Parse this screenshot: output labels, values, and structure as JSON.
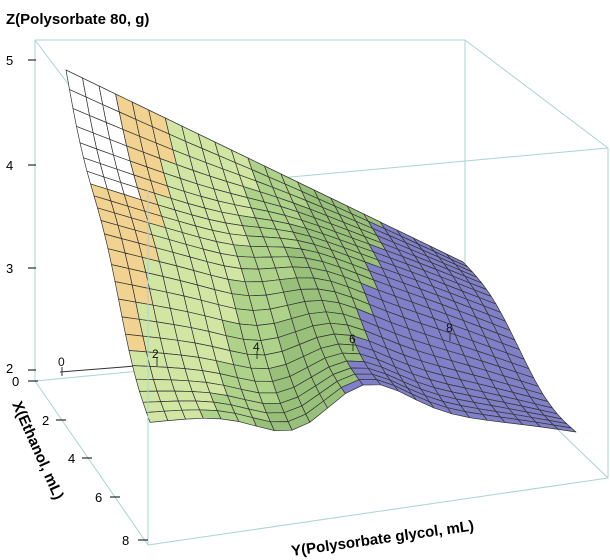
{
  "chart_data": {
    "type": "surface3d",
    "z_axis": {
      "label": "Z(Polysorbate 80, g)",
      "ticks": [
        "5",
        "4",
        "3",
        "2"
      ],
      "range": [
        2,
        5
      ]
    },
    "x_axis": {
      "label": "X(Ethanol, mL)",
      "ticks": [
        "0",
        "2",
        "4",
        "6",
        "8"
      ],
      "range": [
        0,
        8
      ]
    },
    "y_axis": {
      "label": "Y(Polysorbate glycol, mL)",
      "ticks": [
        "0",
        "2",
        "4",
        "6",
        "8"
      ],
      "range": [
        0,
        8
      ]
    },
    "color_bands": [
      {
        "z_min": 2.0,
        "z_max": 2.75,
        "color": "#8080c8"
      },
      {
        "z_min": 2.75,
        "z_max": 3.25,
        "color": "#98c07a"
      },
      {
        "z_min": 3.25,
        "z_max": 3.6,
        "color": "#aed28a"
      },
      {
        "z_min": 3.6,
        "z_max": 4.2,
        "color": "#d2e6a4"
      },
      {
        "z_min": 4.2,
        "z_max": 5.0,
        "color": "#f2d290"
      }
    ],
    "mesh_color": "#333333",
    "box_color": "#a8d4d2",
    "grid": true
  }
}
